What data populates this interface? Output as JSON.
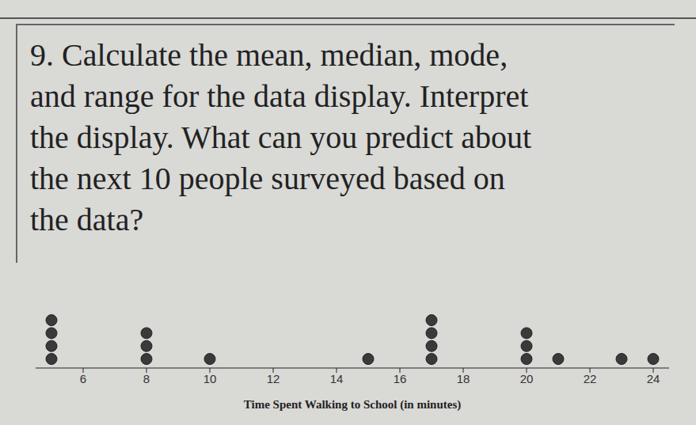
{
  "question_lines": [
    "9. Calculate the mean, median, mode,",
    "and range for the data display. Interpret",
    "the display. What can you predict about",
    "the next 10 people  surveyed based on",
    "the data?"
  ],
  "chart_data": {
    "type": "dot_plot",
    "x_label": "Time Spent Walking to School (in minutes)",
    "x": [
      5,
      8,
      10,
      15,
      17,
      20,
      21,
      23,
      24
    ],
    "counts": [
      4,
      3,
      1,
      1,
      4,
      3,
      1,
      1,
      1
    ],
    "color": "#3a3a3a",
    "xlim": [
      4.5,
      24.5
    ],
    "xticks": [
      6,
      8,
      10,
      12,
      14,
      16,
      18,
      20,
      22,
      24
    ],
    "tick_labels": "x",
    "grid": false
  }
}
